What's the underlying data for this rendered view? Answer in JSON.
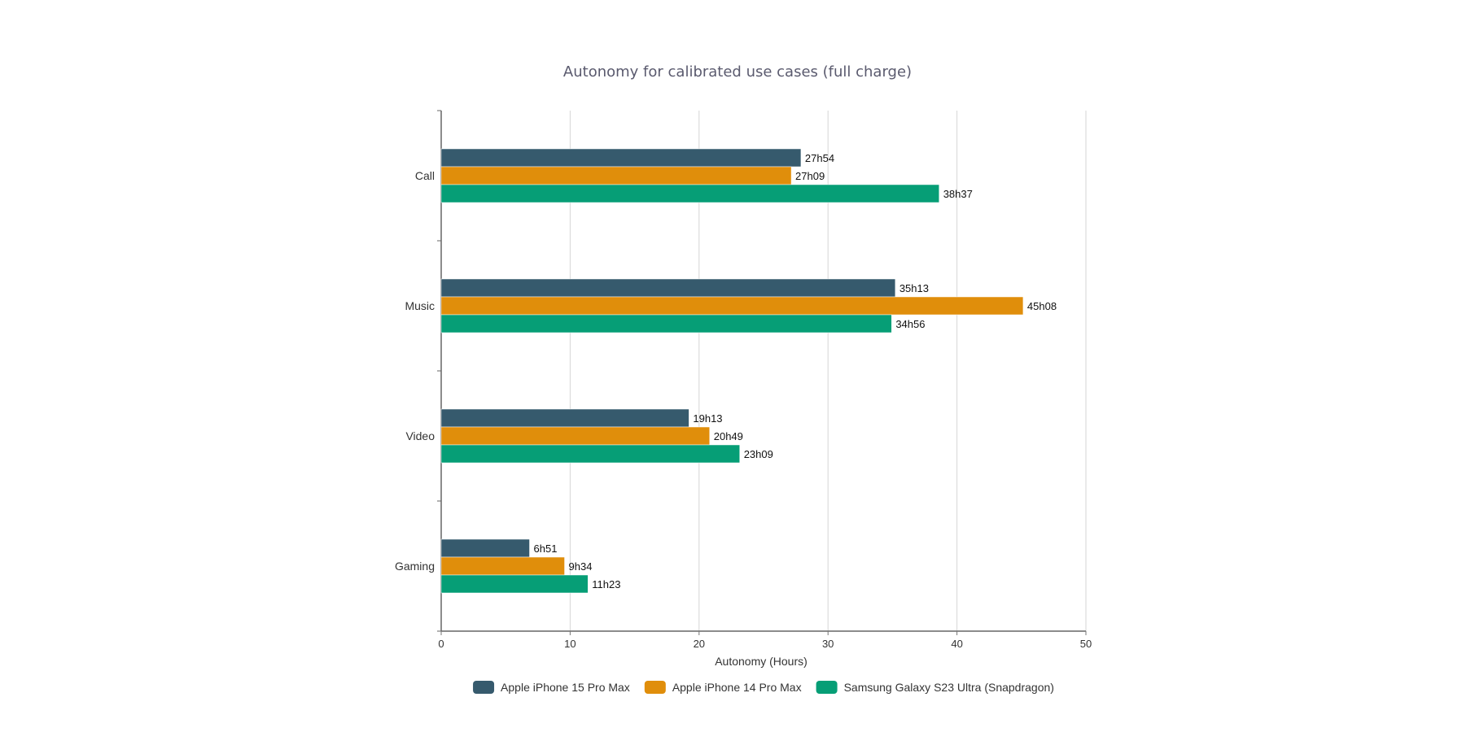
{
  "chart_data": {
    "type": "bar",
    "orientation": "horizontal",
    "title": "Autonomy for calibrated use cases (full charge)",
    "xlabel": "Autonomy (Hours)",
    "ylabel": "",
    "xlim": [
      0,
      50
    ],
    "xticks": [
      0,
      10,
      20,
      30,
      40,
      50
    ],
    "grid": true,
    "legend_position": "bottom",
    "categories": [
      "Call",
      "Music",
      "Video",
      "Gaming"
    ],
    "series": [
      {
        "name": "Apple iPhone 15 Pro Max",
        "color": "#365a6d",
        "values": [
          27.9,
          35.217,
          19.217,
          6.85
        ],
        "labels": [
          "27h54",
          "35h13",
          "19h13",
          "6h51"
        ]
      },
      {
        "name": "Apple iPhone 14 Pro Max",
        "color": "#e08e0b",
        "values": [
          27.15,
          45.133,
          20.817,
          9.567
        ],
        "labels": [
          "27h09",
          "45h08",
          "20h49",
          "9h34"
        ]
      },
      {
        "name": "Samsung Galaxy S23 Ultra (Snapdragon)",
        "color": "#069e76",
        "values": [
          38.617,
          34.933,
          23.15,
          11.383
        ],
        "labels": [
          "38h37",
          "34h56",
          "23h09",
          "11h23"
        ]
      }
    ]
  }
}
